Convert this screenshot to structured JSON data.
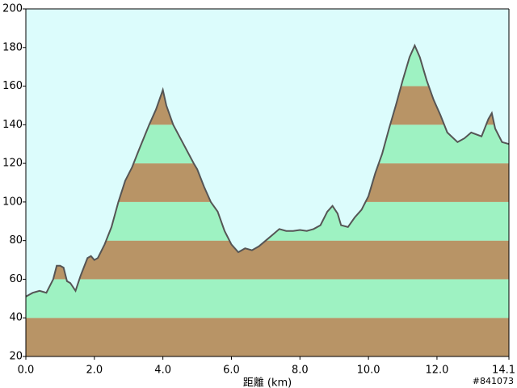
{
  "chart_data": {
    "type": "area",
    "xlabel": "距離 (km)",
    "annotation": "#841073",
    "x": [
      0.0,
      0.2,
      0.4,
      0.6,
      0.8,
      0.9,
      1.0,
      1.1,
      1.2,
      1.3,
      1.45,
      1.6,
      1.8,
      1.9,
      2.0,
      2.1,
      2.3,
      2.5,
      2.7,
      2.9,
      3.1,
      3.3,
      3.6,
      3.8,
      4.0,
      4.1,
      4.3,
      4.6,
      4.9,
      5.0,
      5.2,
      5.4,
      5.6,
      5.8,
      6.0,
      6.2,
      6.4,
      6.6,
      6.8,
      7.0,
      7.2,
      7.4,
      7.6,
      7.8,
      8.0,
      8.2,
      8.4,
      8.6,
      8.8,
      8.95,
      9.1,
      9.2,
      9.4,
      9.6,
      9.8,
      10.0,
      10.2,
      10.4,
      10.6,
      10.8,
      11.0,
      11.2,
      11.35,
      11.5,
      11.7,
      11.9,
      12.1,
      12.3,
      12.6,
      12.8,
      13.0,
      13.3,
      13.5,
      13.6,
      13.7,
      13.9,
      14.1
    ],
    "values": [
      51,
      53,
      54,
      53,
      60,
      67,
      67,
      66,
      59,
      58,
      54,
      62,
      71,
      72,
      70,
      71,
      78,
      87,
      100,
      111,
      118,
      127,
      140,
      148,
      158,
      150,
      140,
      130,
      120,
      117,
      108,
      100,
      95,
      85,
      78,
      74,
      76,
      75,
      77,
      80,
      83,
      86,
      85,
      85,
      85.5,
      85,
      86,
      88,
      95,
      98,
      94,
      88,
      87,
      92,
      96,
      103,
      115,
      125,
      138,
      150,
      163,
      175,
      181,
      175,
      163,
      153,
      145,
      136,
      131,
      133,
      136,
      134,
      143,
      146,
      138,
      131,
      130
    ],
    "xlim": [
      0,
      14.1
    ],
    "ylim": [
      20,
      200
    ],
    "xticks": [
      {
        "value": 0,
        "label": "0.0"
      },
      {
        "value": 2,
        "label": "2.0"
      },
      {
        "value": 4,
        "label": "4.0"
      },
      {
        "value": 6,
        "label": "6.0"
      },
      {
        "value": 8,
        "label": "8.0"
      },
      {
        "value": 10,
        "label": "10.0"
      },
      {
        "value": 12,
        "label": "12.0"
      },
      14.1
    ],
    "yticks": [
      20,
      40,
      60,
      80,
      100,
      120,
      140,
      160,
      180,
      200
    ],
    "colors": {
      "background": "#dcfcfc",
      "bands": [
        "#b89466",
        "#9ef2c2"
      ],
      "line": "#555555"
    }
  }
}
